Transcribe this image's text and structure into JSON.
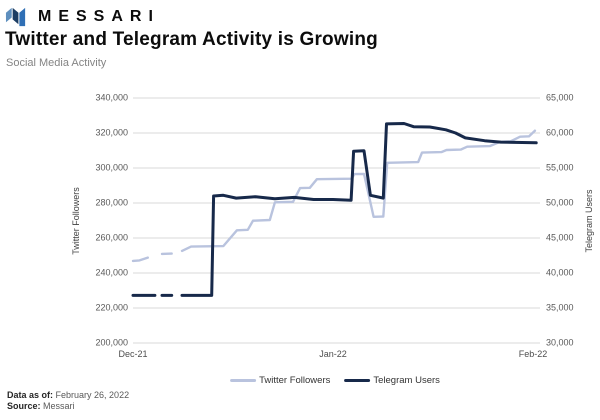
{
  "header": {
    "brand": "MESSARI"
  },
  "chart_data": {
    "type": "line",
    "title": "Twitter and Telegram Activity is Growing",
    "subtitle": "Social Media Activity",
    "x_unit": "days since Dec 1, 2021 (ticks are month starts)",
    "x_range": [
      0,
      62.5
    ],
    "x_ticks": [
      {
        "pos": 0,
        "label": "Dec-21"
      },
      {
        "pos": 31,
        "label": "Jan-22"
      },
      {
        "pos": 62,
        "label": "Feb-22"
      }
    ],
    "left_axis": {
      "label": "Twitter Followers",
      "min": 200000,
      "max": 340000,
      "step": 20000
    },
    "right_axis": {
      "label": "Telegram Users",
      "min": 30000,
      "max": 65000,
      "step": 5000
    },
    "grid": "horizontal",
    "grid_color": "#d9d9d9",
    "legend_position": "bottom",
    "series": [
      {
        "name": "Twitter Followers",
        "slug": "twitter-followers",
        "axis": "left",
        "color": "#b9c3de",
        "stroke_width": 2.4,
        "points": [
          [
            0,
            246900
          ],
          [
            1,
            247200
          ],
          [
            2.3,
            248800
          ],
          null,
          [
            4.5,
            250900
          ],
          [
            6,
            251100
          ],
          null,
          [
            7.6,
            252600
          ],
          [
            9,
            255100
          ],
          [
            14,
            255400
          ],
          [
            16.1,
            264400
          ],
          [
            17.8,
            264700
          ],
          [
            18.6,
            269900
          ],
          [
            21.2,
            270300
          ],
          [
            22,
            280400
          ],
          [
            24.8,
            280700
          ],
          [
            25.9,
            288500
          ],
          [
            27.4,
            288700
          ],
          [
            28.5,
            293600
          ],
          [
            33.9,
            293900
          ],
          [
            34.3,
            296500
          ],
          [
            35.8,
            296600
          ],
          [
            37.3,
            272100
          ],
          [
            38.8,
            272300
          ],
          [
            39.4,
            303000
          ],
          [
            44.2,
            303400
          ],
          [
            44.8,
            308800
          ],
          [
            47.8,
            309100
          ],
          [
            48.6,
            310300
          ],
          [
            50.8,
            310500
          ],
          [
            51.8,
            312200
          ],
          [
            55.3,
            312500
          ],
          [
            56.9,
            315000
          ],
          [
            58.5,
            315200
          ],
          [
            60,
            317900
          ],
          [
            61.4,
            318100
          ],
          [
            62.3,
            321300
          ]
        ]
      },
      {
        "name": "Telegram Users",
        "slug": "telegram-users",
        "axis": "right",
        "color": "#17294a",
        "stroke_width": 3,
        "points": [
          [
            0,
            36800
          ],
          [
            3.4,
            36800
          ],
          null,
          [
            4.5,
            36800
          ],
          [
            6,
            36800
          ],
          null,
          [
            7.6,
            36800
          ],
          [
            12.2,
            36800
          ],
          [
            12.5,
            51000
          ],
          [
            14,
            51100
          ],
          [
            16,
            50700
          ],
          [
            19,
            50900
          ],
          [
            22,
            50600
          ],
          [
            25,
            50800
          ],
          [
            28,
            50500
          ],
          [
            31,
            50500
          ],
          [
            33.8,
            50400
          ],
          [
            34.2,
            57400
          ],
          [
            35.8,
            57450
          ],
          [
            36.8,
            51100
          ],
          [
            38.8,
            50700
          ],
          [
            39.3,
            61300
          ],
          [
            42,
            61350
          ],
          [
            43.5,
            60900
          ],
          [
            46,
            60850
          ],
          [
            48.5,
            60450
          ],
          [
            50,
            60000
          ],
          [
            51.5,
            59300
          ],
          [
            54.5,
            58900
          ],
          [
            57,
            58700
          ],
          [
            62.5,
            58600
          ]
        ]
      }
    ]
  },
  "footer": {
    "data_as_of_label": "Data as of:",
    "data_as_of_value": "February 26, 2022",
    "source_label": "Source:",
    "source_value": "Messari"
  }
}
